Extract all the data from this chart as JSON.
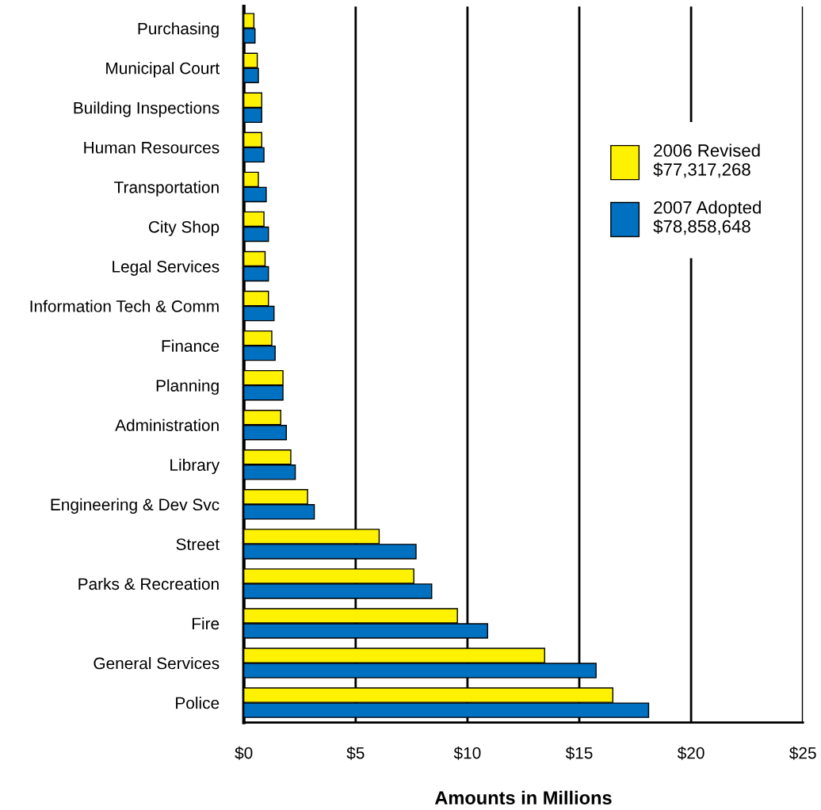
{
  "chart_data": {
    "type": "bar",
    "orientation": "horizontal",
    "xlabel": "Amounts in Millions",
    "categories": [
      "Purchasing",
      "Municipal Court",
      "Building Inspections",
      "Human Resources",
      "Transportation",
      "City Shop",
      "Legal Services",
      "Information Tech & Comm",
      "Finance",
      "Planning",
      "Administration",
      "Library",
      "Engineering & Dev Svc",
      "Street",
      "Parks & Recreation",
      "Fire",
      "General Services",
      "Police"
    ],
    "series": [
      {
        "name": "2006 Revised\n$77,317,268",
        "color": "#fff200",
        "values": [
          0.45,
          0.6,
          0.8,
          0.8,
          0.65,
          0.9,
          0.95,
          1.1,
          1.25,
          1.75,
          1.65,
          2.1,
          2.85,
          6.05,
          7.6,
          9.55,
          13.45,
          16.5
        ]
      },
      {
        "name": "2007 Adopted\n$78,858,648",
        "color": "#0070c0",
        "values": [
          0.5,
          0.65,
          0.8,
          0.9,
          1.0,
          1.1,
          1.1,
          1.35,
          1.4,
          1.75,
          1.9,
          2.3,
          3.15,
          7.7,
          8.4,
          10.9,
          15.75,
          18.1
        ]
      }
    ],
    "xlim": [
      0,
      25
    ],
    "xticks": [
      {
        "value": 0,
        "label": "$0"
      },
      {
        "value": 5,
        "label": "$5"
      },
      {
        "value": 10,
        "label": "$10"
      },
      {
        "value": 15,
        "label": "$15"
      },
      {
        "value": 20,
        "label": "$20"
      },
      {
        "value": 25,
        "label": "$25"
      }
    ],
    "grid": "x",
    "legend": "top right"
  }
}
